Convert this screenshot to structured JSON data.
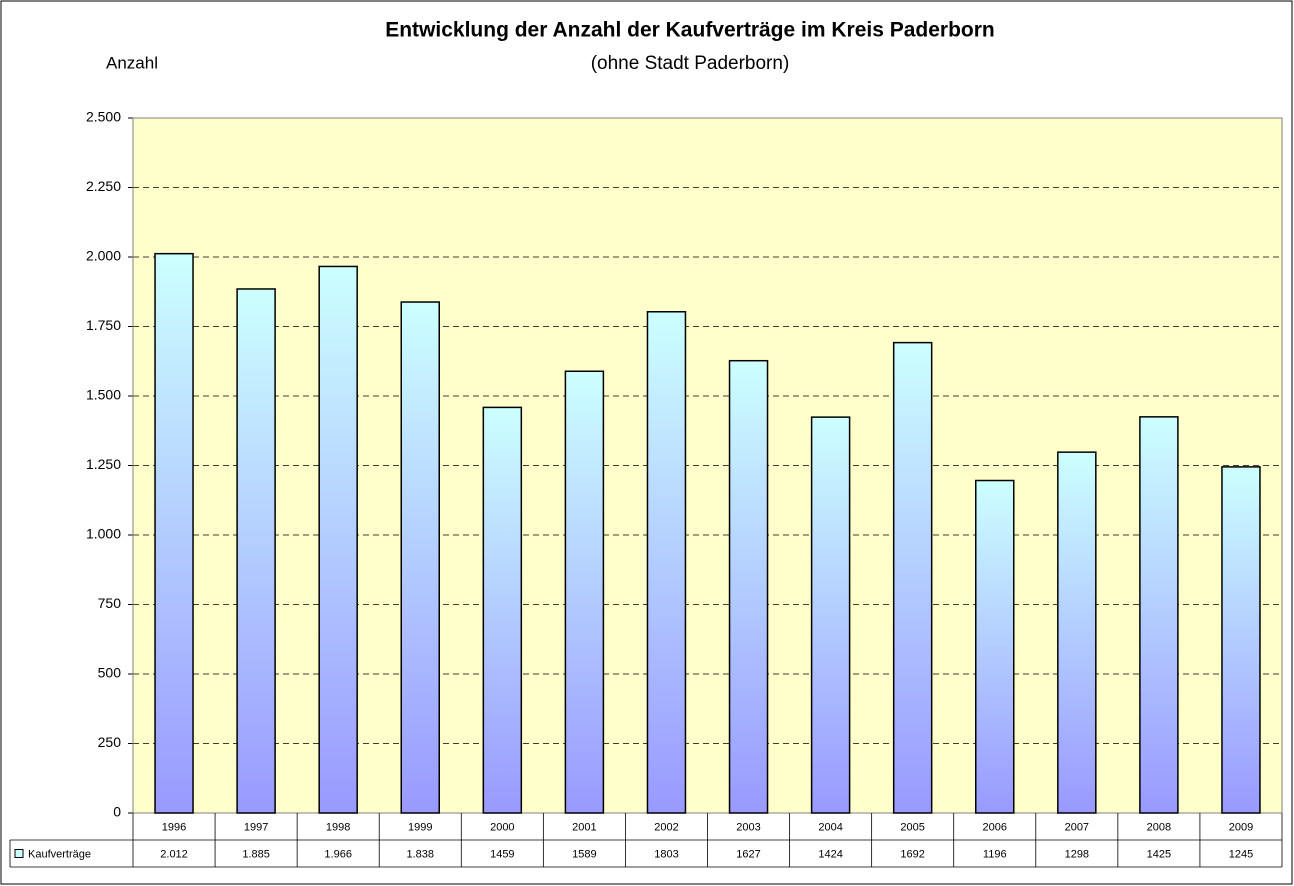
{
  "chart_data": {
    "type": "bar",
    "title": "Entwicklung der Anzahl der Kaufverträge im Kreis Paderborn",
    "subtitle": "(ohne Stadt Paderborn)",
    "y_label": "Anzahl",
    "categories": [
      "1996",
      "1997",
      "1998",
      "1999",
      "2000",
      "2001",
      "2002",
      "2003",
      "2004",
      "2005",
      "2006",
      "2007",
      "2008",
      "2009"
    ],
    "series": [
      {
        "name": "Kaufverträge",
        "gradient": [
          "#ccffff",
          "#9999ff"
        ],
        "values": [
          2012,
          1885,
          1966,
          1838,
          1459,
          1589,
          1803,
          1627,
          1424,
          1692,
          1196,
          1298,
          1425,
          1245
        ],
        "value_labels": [
          "2.012",
          "1.885",
          "1.966",
          "1.838",
          "1459",
          "1589",
          "1803",
          "1627",
          "1424",
          "1692",
          "1196",
          "1298",
          "1425",
          "1245"
        ]
      }
    ],
    "ylim": [
      0,
      2500
    ],
    "yticks": [
      0,
      250,
      500,
      750,
      {
        "value": 1000,
        "label": "1.000"
      },
      {
        "value": 1250,
        "label": "1.250"
      },
      {
        "value": 1500,
        "label": "1.500"
      },
      {
        "value": 1750,
        "label": "1.750"
      },
      {
        "value": 2000,
        "label": "2.000"
      },
      {
        "value": 2250,
        "label": "2.250"
      },
      {
        "value": 2500,
        "label": "2.500"
      }
    ],
    "grid": true,
    "plot_background": "#ffffcc"
  }
}
